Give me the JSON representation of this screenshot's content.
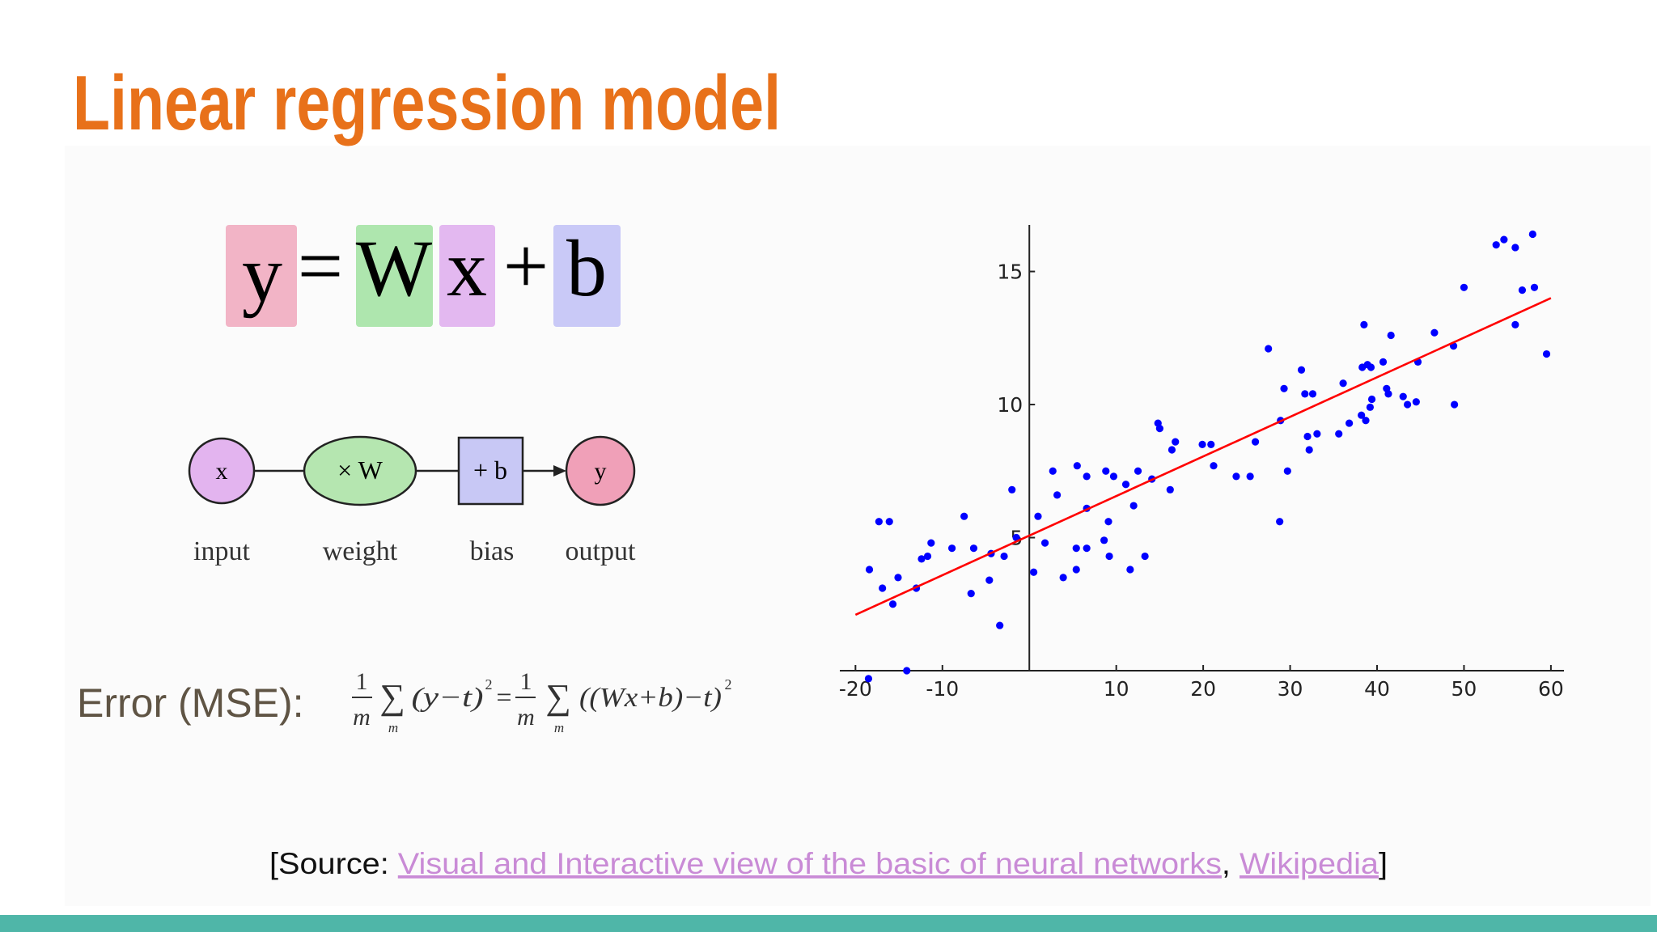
{
  "title": "Linear regression model",
  "equation": {
    "y": "y",
    "eq": "=",
    "W": "W",
    "x": "x",
    "plus": "+",
    "b": "b"
  },
  "diagram": {
    "nodes": [
      {
        "symbol": "x",
        "label": "input"
      },
      {
        "symbol": "× W",
        "label": "weight"
      },
      {
        "symbol": "+ b",
        "label": "bias"
      },
      {
        "symbol": "y",
        "label": "output"
      }
    ]
  },
  "error": {
    "label": "Error (MSE):",
    "formula": [
      "1",
      "m",
      "∑",
      "m",
      "(y−t)",
      "2",
      "=",
      "1",
      "m",
      "∑",
      "m",
      "((Wx+b)−t)",
      "2"
    ]
  },
  "source": {
    "prefix": "[Source:",
    "link1": "Visual and Interactive view of the basic of neural networks",
    "sep": ",",
    "link2": "Wikipedia",
    "suffix": "]"
  },
  "chart_data": {
    "type": "scatter",
    "xlim": [
      -21.8,
      61.5
    ],
    "ylim": [
      0,
      16.75
    ],
    "xticks": [
      -20,
      -10,
      10,
      20,
      30,
      40,
      50,
      60
    ],
    "yticks": [
      5,
      10,
      15
    ],
    "series": [
      {
        "type": "scatter",
        "color": "#0000ff",
        "x": [
          -18.4,
          -17.3,
          -16.1,
          -16.9,
          -15.7,
          -15.1,
          -14.1,
          -13.0,
          -12.4,
          -11.7,
          -11.3,
          -8.9,
          -7.5,
          -6.7,
          -6.4,
          -4.6,
          -4.4,
          -3.4,
          -2.9,
          -2.0,
          -1.5,
          0.5,
          1.0,
          1.8,
          2.7,
          3.2,
          3.9,
          5.4,
          5.5,
          5.4,
          6.6,
          6.6,
          6.6,
          8.6,
          8.8,
          9.1,
          9.2,
          9.7,
          11.1,
          11.6,
          12.0,
          12.5,
          13.3,
          14.1,
          14.8,
          15.0,
          16.2,
          16.4,
          16.8,
          19.9,
          20.9,
          21.2,
          23.8,
          25.4,
          26.0,
          27.5,
          28.8,
          28.9,
          29.3,
          29.7,
          31.3,
          31.7,
          32.0,
          32.2,
          32.6,
          33.1,
          35.6,
          36.1,
          36.8,
          38.2,
          38.3,
          38.5,
          38.7,
          38.9,
          39.2,
          39.3,
          39.4,
          40.7,
          41.1,
          41.3,
          41.6,
          43.0,
          43.5,
          44.5,
          44.7,
          46.6,
          48.8,
          48.9,
          50.0,
          53.7,
          54.6,
          55.9,
          55.9,
          56.7,
          57.9,
          58.1,
          59.5,
          -18.5
        ],
        "values": [
          3.8,
          5.6,
          5.6,
          3.1,
          2.5,
          3.5,
          0,
          3.1,
          4.2,
          4.3,
          4.8,
          4.6,
          5.8,
          2.9,
          4.6,
          3.4,
          4.4,
          1.7,
          4.3,
          6.8,
          5.0,
          3.7,
          5.8,
          4.8,
          7.5,
          6.6,
          3.5,
          3.8,
          7.7,
          4.6,
          7.3,
          6.1,
          4.6,
          4.9,
          7.5,
          5.6,
          4.3,
          7.3,
          7.0,
          3.8,
          6.2,
          7.5,
          4.3,
          7.2,
          9.3,
          9.1,
          6.8,
          8.3,
          8.6,
          8.5,
          8.5,
          7.7,
          7.3,
          7.3,
          8.6,
          12.1,
          5.6,
          9.4,
          10.6,
          7.5,
          11.3,
          10.4,
          8.8,
          8.3,
          10.4,
          8.9,
          8.9,
          10.8,
          9.3,
          9.6,
          11.4,
          13.0,
          9.4,
          11.5,
          9.9,
          11.4,
          10.2,
          11.6,
          10.6,
          10.4,
          12.6,
          10.3,
          10.0,
          10.1,
          11.6,
          12.7,
          12.2,
          10.0,
          14.4,
          16.0,
          16.2,
          15.9,
          13.0,
          14.3,
          16.4,
          14.4,
          11.9,
          -0.3
        ]
      },
      {
        "type": "line",
        "color": "#ff0000",
        "x": [
          -20,
          60
        ],
        "values": [
          2.1,
          14.0
        ]
      }
    ]
  }
}
